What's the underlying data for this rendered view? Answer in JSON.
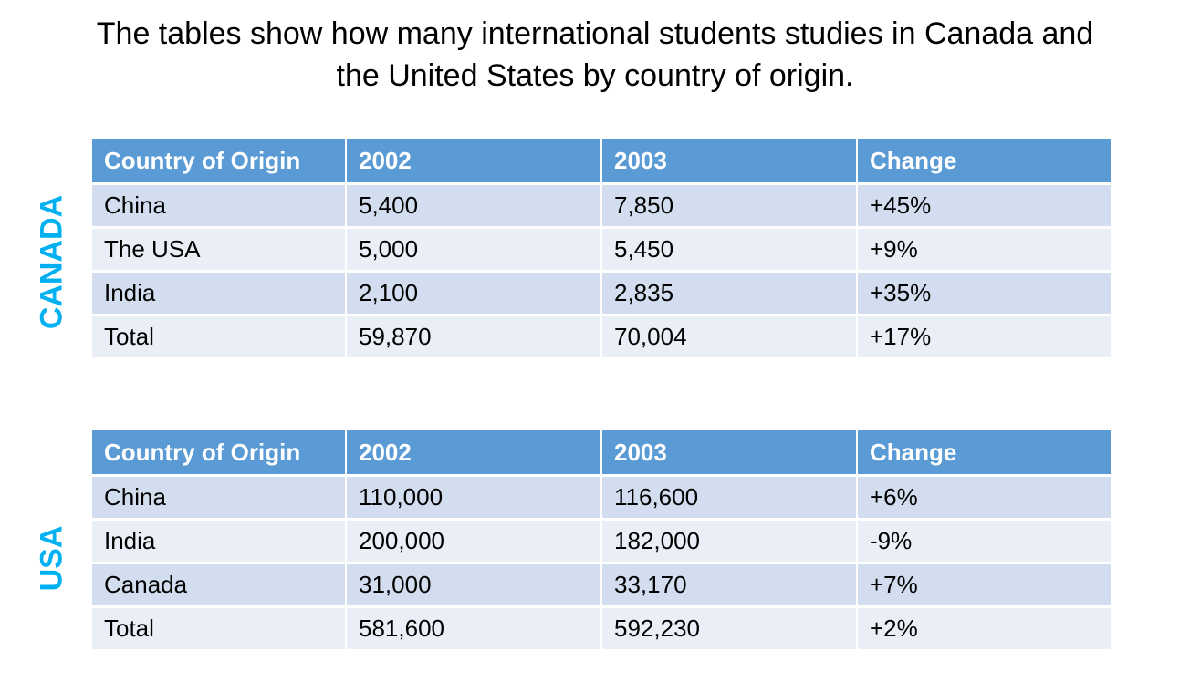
{
  "title_line1": "The tables show how many international students studies in Canada and",
  "title_line2": "the United States by country of origin.",
  "colors": {
    "header": "#5B9BD5",
    "row_odd": "#D2DEEF",
    "row_even": "#EAEFF7",
    "side_label": "#00B0F0"
  },
  "chart_data": [
    {
      "type": "table",
      "label": "CANADA",
      "columns": [
        "Country of Origin",
        "2002",
        "2003",
        "Change"
      ],
      "rows": [
        [
          "China",
          "5,400",
          "7,850",
          "+45%"
        ],
        [
          "The USA",
          "5,000",
          "5,450",
          "+9%"
        ],
        [
          "India",
          "2,100",
          "2,835",
          "+35%"
        ],
        [
          "Total",
          "59,870",
          "70,004",
          "+17%"
        ]
      ]
    },
    {
      "type": "table",
      "label": "USA",
      "columns": [
        "Country of Origin",
        "2002",
        "2003",
        "Change"
      ],
      "rows": [
        [
          "China",
          "110,000",
          "116,600",
          "+6%"
        ],
        [
          "India",
          "200,000",
          "182,000",
          "-9%"
        ],
        [
          "Canada",
          "31,000",
          "33,170",
          "+7%"
        ],
        [
          "Total",
          "581,600",
          "592,230",
          "+2%"
        ]
      ]
    }
  ]
}
